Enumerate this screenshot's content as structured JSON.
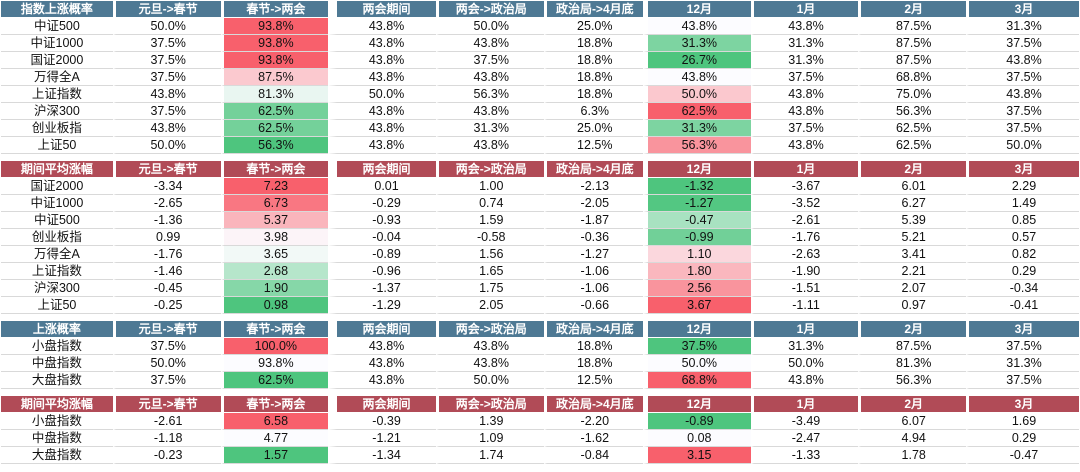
{
  "colors": {
    "header_blue": "#4E7994",
    "header_red": "#B14B57",
    "grid_line": "#D9D9D9",
    "scale_green": "#4EC57E",
    "scale_mid": "#FCFCFF",
    "scale_red": "#F8606C",
    "text": "#111111",
    "header_text": "#FFFFFF"
  },
  "chart_data": [
    {
      "type": "table",
      "title": "指数上涨概率",
      "theme": "blue",
      "decimals": 1,
      "suffix": "%",
      "columns": [
        "元旦->春节",
        "春节->两会",
        "两会期间",
        "两会->政治局",
        "政治局->4月底",
        "12月",
        "1月",
        "2月",
        "3月"
      ],
      "highlight_columns": [
        1,
        5
      ],
      "rows": [
        {
          "label": "中证500",
          "values": [
            50.0,
            93.8,
            43.8,
            50.0,
            25.0,
            43.8,
            43.8,
            87.5,
            31.3
          ]
        },
        {
          "label": "中证1000",
          "values": [
            37.5,
            93.8,
            43.8,
            43.8,
            18.8,
            31.3,
            31.3,
            87.5,
            37.5
          ]
        },
        {
          "label": "国证2000",
          "values": [
            37.5,
            93.8,
            43.8,
            37.5,
            18.8,
            26.7,
            31.3,
            87.5,
            43.8
          ]
        },
        {
          "label": "万得全A",
          "values": [
            37.5,
            87.5,
            43.8,
            43.8,
            18.8,
            43.8,
            37.5,
            68.8,
            37.5
          ]
        },
        {
          "label": "上证指数",
          "values": [
            43.8,
            81.3,
            50.0,
            56.3,
            18.8,
            50.0,
            43.8,
            75.0,
            43.8
          ]
        },
        {
          "label": "沪深300",
          "values": [
            37.5,
            62.5,
            43.8,
            43.8,
            6.3,
            62.5,
            43.8,
            56.3,
            37.5
          ]
        },
        {
          "label": "创业板指",
          "values": [
            43.8,
            62.5,
            43.8,
            31.3,
            25.0,
            31.3,
            37.5,
            62.5,
            37.5
          ]
        },
        {
          "label": "上证50",
          "values": [
            50.0,
            56.3,
            43.8,
            43.8,
            12.5,
            56.3,
            43.8,
            62.5,
            50.0
          ]
        }
      ]
    },
    {
      "type": "table",
      "title": "期间平均涨幅",
      "theme": "red",
      "decimals": 2,
      "suffix": "",
      "columns": [
        "元旦->春节",
        "春节->两会",
        "两会期间",
        "两会->政治局",
        "政治局->4月底",
        "12月",
        "1月",
        "2月",
        "3月"
      ],
      "highlight_columns": [
        1,
        5
      ],
      "rows": [
        {
          "label": "国证2000",
          "values": [
            -3.34,
            7.23,
            0.01,
            1.0,
            -2.13,
            -1.32,
            -3.67,
            6.01,
            2.29
          ]
        },
        {
          "label": "中证1000",
          "values": [
            -2.65,
            6.73,
            -0.29,
            0.74,
            -2.05,
            -1.27,
            -3.52,
            6.27,
            1.49
          ]
        },
        {
          "label": "中证500",
          "values": [
            -1.36,
            5.37,
            -0.93,
            1.59,
            -1.87,
            -0.47,
            -2.61,
            5.39,
            0.85
          ]
        },
        {
          "label": "创业板指",
          "values": [
            0.99,
            3.98,
            -0.04,
            -0.58,
            -0.36,
            -0.99,
            -1.76,
            5.21,
            0.57
          ]
        },
        {
          "label": "万得全A",
          "values": [
            -1.76,
            3.65,
            -0.89,
            1.56,
            -1.27,
            1.1,
            -2.63,
            3.41,
            0.82
          ]
        },
        {
          "label": "上证指数",
          "values": [
            -1.46,
            2.68,
            -0.96,
            1.65,
            -1.06,
            1.8,
            -1.9,
            2.21,
            0.29
          ]
        },
        {
          "label": "沪深300",
          "values": [
            -0.45,
            1.9,
            -1.37,
            1.75,
            -1.06,
            2.56,
            -1.51,
            2.07,
            -0.34
          ]
        },
        {
          "label": "上证50",
          "values": [
            -0.25,
            0.98,
            -1.29,
            2.05,
            -0.66,
            3.67,
            -1.11,
            0.97,
            -0.41
          ]
        }
      ]
    },
    {
      "type": "table",
      "title": "上涨概率",
      "theme": "blue",
      "decimals": 1,
      "suffix": "%",
      "columns": [
        "元旦->春节",
        "春节->两会",
        "两会期间",
        "两会->政治局",
        "政治局->4月底",
        "12月",
        "1月",
        "2月",
        "3月"
      ],
      "highlight_columns": [
        1,
        5
      ],
      "rows": [
        {
          "label": "小盘指数",
          "values": [
            37.5,
            100.0,
            43.8,
            43.8,
            18.8,
            37.5,
            31.3,
            87.5,
            37.5
          ]
        },
        {
          "label": "中盘指数",
          "values": [
            50.0,
            93.8,
            43.8,
            43.8,
            18.8,
            50.0,
            50.0,
            81.3,
            31.3
          ]
        },
        {
          "label": "大盘指数",
          "values": [
            37.5,
            62.5,
            43.8,
            50.0,
            12.5,
            68.8,
            43.8,
            56.3,
            37.5
          ]
        }
      ]
    },
    {
      "type": "table",
      "title": "期间平均涨幅",
      "theme": "red",
      "decimals": 2,
      "suffix": "",
      "columns": [
        "元旦->春节",
        "春节->两会",
        "两会期间",
        "两会->政治局",
        "政治局->4月底",
        "12月",
        "1月",
        "2月",
        "3月"
      ],
      "highlight_columns": [
        1,
        5
      ],
      "rows": [
        {
          "label": "小盘指数",
          "values": [
            -2.61,
            6.58,
            -0.39,
            1.39,
            -2.2,
            -0.89,
            -3.49,
            6.07,
            1.69
          ]
        },
        {
          "label": "中盘指数",
          "values": [
            -1.18,
            4.77,
            -1.21,
            1.09,
            -1.62,
            0.08,
            -2.47,
            4.94,
            0.29
          ]
        },
        {
          "label": "大盘指数",
          "values": [
            -0.23,
            1.57,
            -1.34,
            1.74,
            -0.84,
            3.15,
            -1.33,
            1.78,
            -0.47
          ]
        }
      ]
    }
  ]
}
